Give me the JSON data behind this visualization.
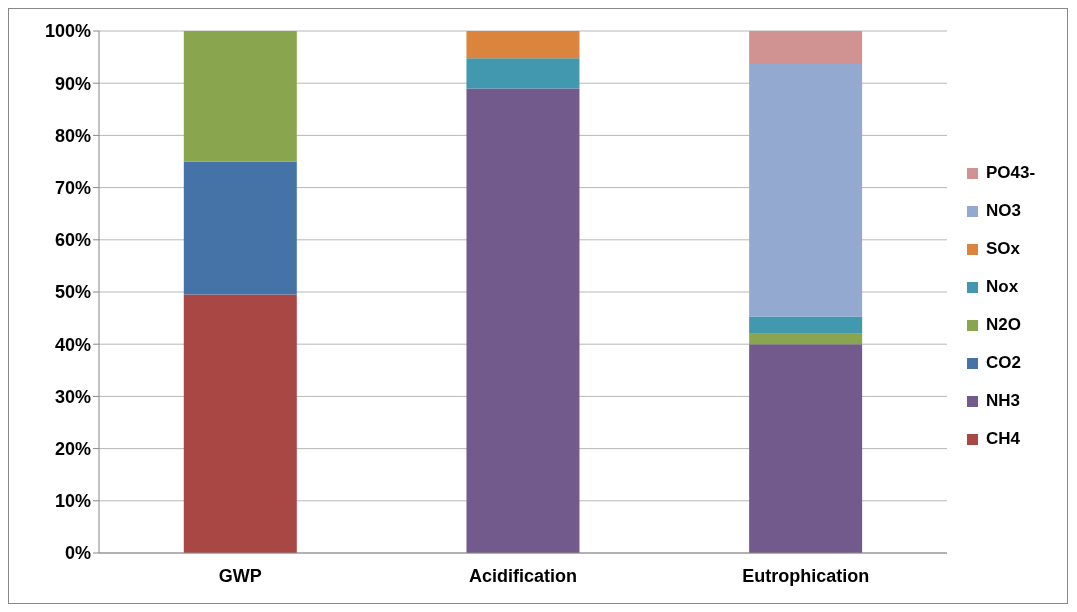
{
  "chart_data": {
    "type": "bar",
    "stacked": true,
    "categories": [
      "GWP",
      "Acidification",
      "Eutrophication"
    ],
    "series": [
      {
        "name": "CH4",
        "color": "#a84744",
        "values": [
          49.5,
          null,
          null
        ]
      },
      {
        "name": "NH3",
        "color": "#725a8c",
        "values": [
          null,
          89,
          40
        ]
      },
      {
        "name": "CO2",
        "color": "#4572a7",
        "values": [
          25.5,
          null,
          null
        ]
      },
      {
        "name": "N2O",
        "color": "#89a54e",
        "values": [
          25,
          null,
          2
        ]
      },
      {
        "name": "Nox",
        "color": "#4198af",
        "values": [
          null,
          5.8,
          3.3
        ]
      },
      {
        "name": "SOx",
        "color": "#db843d",
        "values": [
          null,
          5.2,
          null
        ]
      },
      {
        "name": "NO3",
        "color": "#93a9cf",
        "values": [
          null,
          null,
          48.4
        ]
      },
      {
        "name": "PO43-",
        "color": "#d19392",
        "values": [
          null,
          null,
          6.3
        ]
      }
    ],
    "ylim": [
      0,
      100
    ],
    "yticks": [
      {
        "value": 0,
        "label": "0%"
      },
      {
        "value": 10,
        "label": "10%"
      },
      {
        "value": 20,
        "label": "20%"
      },
      {
        "value": 30,
        "label": "30%"
      },
      {
        "value": 40,
        "label": "40%"
      },
      {
        "value": 50,
        "label": "50%"
      },
      {
        "value": 60,
        "label": "60%"
      },
      {
        "value": 70,
        "label": "70%"
      },
      {
        "value": 80,
        "label": "80%"
      },
      {
        "value": 90,
        "label": "90%"
      },
      {
        "value": 100,
        "label": "100%"
      }
    ],
    "grid": "y",
    "legend": "right"
  }
}
